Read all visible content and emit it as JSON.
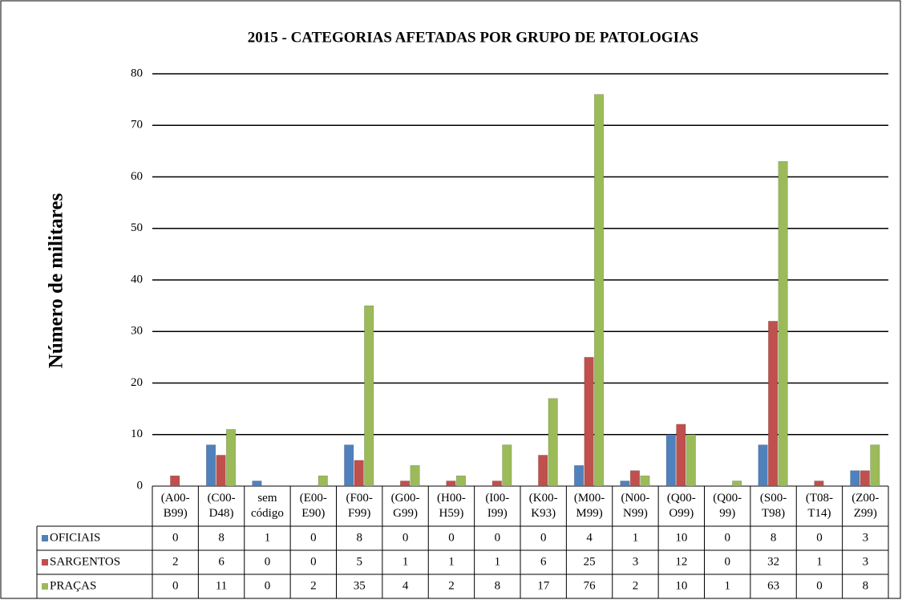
{
  "chart_data": {
    "type": "bar",
    "title": "2015 - CATEGORIAS AFETADAS POR GRUPO DE PATOLOGIAS",
    "y_label": "Número de militares",
    "categories": [
      "(A00-\nB99)",
      "(C00-\nD48)",
      "sem\ncódigo",
      "(E00-\nE90)",
      "(F00-\nF99)",
      "(G00-\nG99)",
      "(H00-\nH59)",
      "(I00-\nI99)",
      "(K00-\nK93)",
      "(M00-\nM99)",
      "(N00-\nN99)",
      "(Q00-\nO99)",
      "(Q00-\n99)",
      "(S00-\nT98)",
      "(T08-\nT14)",
      "(Z00-\nZ99)"
    ],
    "series": [
      {
        "name": "OFICIAIS",
        "color": "#4f81bd",
        "values": [
          0,
          8,
          1,
          0,
          8,
          0,
          0,
          0,
          0,
          4,
          1,
          10,
          0,
          8,
          0,
          3
        ]
      },
      {
        "name": "SARGENTOS",
        "color": "#c0504d",
        "values": [
          2,
          6,
          0,
          0,
          5,
          1,
          1,
          1,
          6,
          25,
          3,
          12,
          0,
          32,
          1,
          3
        ]
      },
      {
        "name": "PRAÇAS",
        "color": "#9bbb59",
        "values": [
          0,
          11,
          0,
          2,
          35,
          4,
          2,
          8,
          17,
          76,
          2,
          10,
          1,
          63,
          0,
          8
        ]
      }
    ],
    "ylim": [
      0,
      80
    ],
    "yticks": [
      0,
      10,
      20,
      30,
      40,
      50,
      60,
      70,
      80
    ],
    "grid": true
  }
}
